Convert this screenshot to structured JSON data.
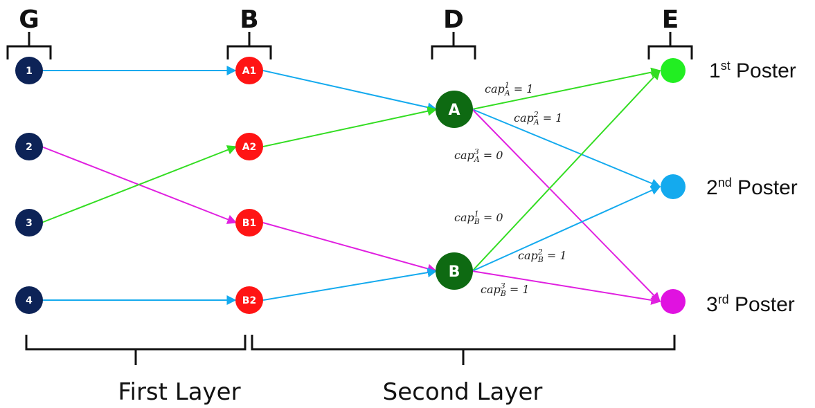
{
  "groups": {
    "g": "G",
    "b": "B",
    "d": "D",
    "e": "E"
  },
  "nodes": {
    "users": [
      "1",
      "2",
      "3",
      "4"
    ],
    "slots": [
      "A1",
      "A2",
      "B1",
      "B2"
    ],
    "venues": [
      "A",
      "B"
    ]
  },
  "capacities": [
    {
      "base": "cap",
      "sub": "A",
      "sup": "1",
      "eq": " = 1"
    },
    {
      "base": "cap",
      "sub": "A",
      "sup": "2",
      "eq": " = 1"
    },
    {
      "base": "cap",
      "sub": "A",
      "sup": "3",
      "eq": " = 0"
    },
    {
      "base": "cap",
      "sub": "B",
      "sup": "1",
      "eq": " = 0"
    },
    {
      "base": "cap",
      "sub": "B",
      "sup": "2",
      "eq": " = 1"
    },
    {
      "base": "cap",
      "sub": "B",
      "sup": "3",
      "eq": " = 1"
    }
  ],
  "posters": [
    {
      "num": "1",
      "suffix": "st",
      "word": " Poster"
    },
    {
      "num": "2",
      "suffix": "nd",
      "word": " Poster"
    },
    {
      "num": "3",
      "suffix": "rd",
      "word": " Poster"
    }
  ],
  "layers": {
    "first": "First Layer",
    "second": "Second Layer"
  },
  "colors": {
    "user_node": "#0d2357",
    "slot_node": "#ff1414",
    "venue_node": "#0e6a12",
    "poster_1": "#22ee22",
    "poster_2": "#14aaee",
    "poster_3": "#e012e0",
    "edge_blue": "#14aaee",
    "edge_green": "#33dd22",
    "edge_magenta": "#e020e0"
  }
}
